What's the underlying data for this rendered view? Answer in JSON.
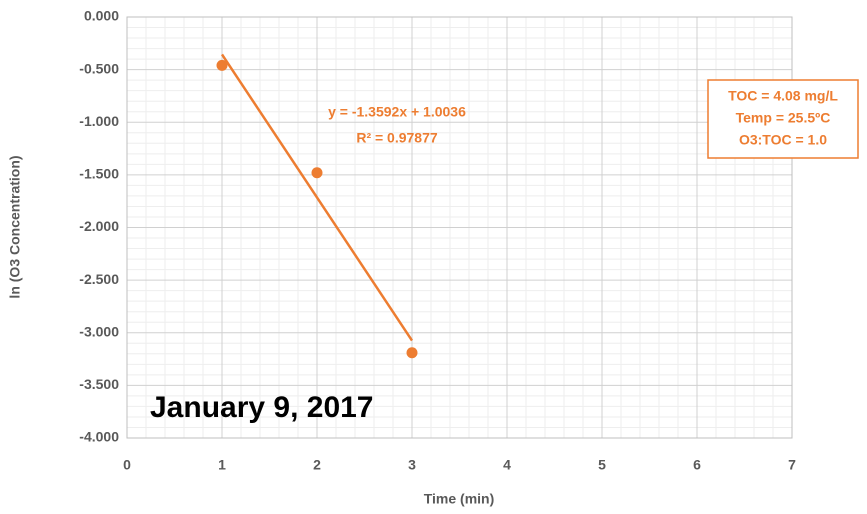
{
  "chart_data": {
    "type": "scatter",
    "x_label": "Time (min)",
    "y_label": "ln (O3 Concentration)",
    "x": [
      1,
      2,
      3
    ],
    "series": [
      {
        "name": "ln (O3 Concentration)",
        "color": "#ed7d31",
        "values": [
          -0.46,
          -1.48,
          -3.19
        ]
      }
    ],
    "trendline": {
      "slope": -1.3592,
      "intercept": 1.0036,
      "equation": "y = -1.3592x + 1.0036",
      "r_squared": "R² = 0.97877",
      "color": "#ed7d31"
    },
    "annotations": {
      "conditions": [
        "TOC = 4.08 mg/L",
        "Temp = 25.5ºC",
        "O3:TOC = 1.0"
      ],
      "date": "January 9, 2017"
    },
    "xlim": [
      0,
      7
    ],
    "xticks": [
      0,
      1,
      2,
      3,
      4,
      5,
      6,
      7
    ],
    "ylim": [
      -4,
      0
    ],
    "yticks": [
      {
        "value": -4,
        "label": "-4.000"
      },
      {
        "value": -3.5,
        "label": "-3.500"
      },
      {
        "value": -3,
        "label": "-3.000"
      },
      {
        "value": -2.5,
        "label": "-2.500"
      },
      {
        "value": -2,
        "label": "-2.000"
      },
      {
        "value": -1.5,
        "label": "-1.500"
      },
      {
        "value": -1,
        "label": "-1.000"
      },
      {
        "value": -0.5,
        "label": "-0.500"
      },
      {
        "value": 0,
        "label": "0.000"
      }
    ],
    "grid": true,
    "minor_grid": true
  }
}
